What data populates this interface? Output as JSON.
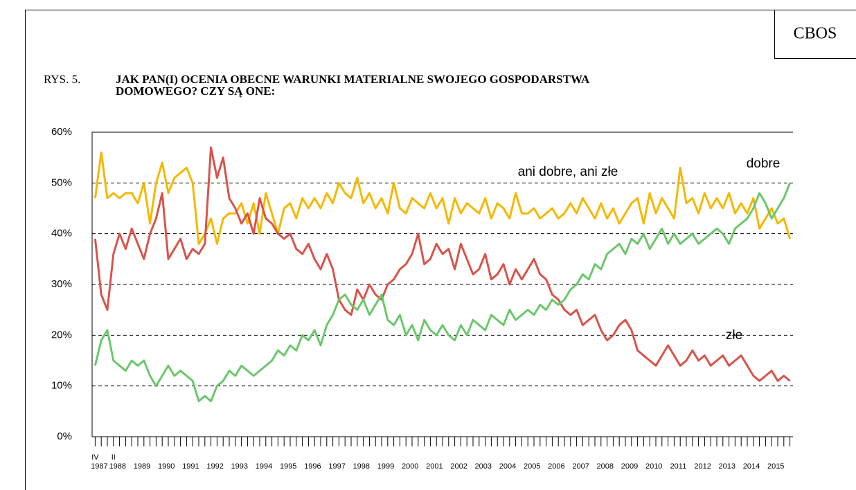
{
  "brand": "CBOS",
  "chart_data": {
    "type": "line",
    "figure_label": "RYS. 5.",
    "title_lines": [
      "JAK PAN(I) OCENIA OBECNE WARUNKI MATERIALNE SWOJEGO GOSPODARSTWA",
      "DOMOWEGO? CZY SĄ ONE:"
    ],
    "categories": [
      "1987",
      null,
      null,
      "1988",
      null,
      null,
      null,
      "1989",
      null,
      null,
      null,
      "1990",
      null,
      null,
      null,
      "1991",
      null,
      null,
      null,
      "1992",
      null,
      null,
      null,
      "1993",
      null,
      null,
      null,
      "1994",
      null,
      null,
      null,
      "1995",
      null,
      null,
      null,
      "1996",
      null,
      null,
      null,
      "1997",
      null,
      null,
      null,
      "1998",
      null,
      null,
      null,
      "1999",
      null,
      null,
      null,
      "2000",
      null,
      null,
      null,
      "2001",
      null,
      null,
      null,
      "2002",
      null,
      null,
      null,
      "2003",
      null,
      null,
      null,
      "2004",
      null,
      null,
      null,
      "2005",
      null,
      null,
      null,
      "2006",
      null,
      null,
      null,
      "2007",
      null,
      null,
      null,
      "2008",
      null,
      null,
      null,
      "2009",
      null,
      null,
      null,
      "2010",
      null,
      null,
      null,
      "2011",
      null,
      null,
      null,
      "2012",
      null,
      null,
      null,
      "2013",
      null,
      null,
      null,
      "2014",
      null,
      null,
      null,
      "2015",
      null,
      null,
      null
    ],
    "sublabels": [
      "IV",
      null,
      null,
      "II",
      null,
      null,
      null,
      null,
      null,
      null,
      null,
      null,
      null,
      null,
      null,
      null,
      null,
      null,
      null,
      null,
      null,
      null,
      null,
      null,
      null,
      null,
      null,
      null,
      null,
      null,
      null,
      null,
      null,
      null,
      null,
      null,
      null,
      null,
      null,
      null,
      null,
      null,
      null,
      null,
      null,
      null,
      null,
      null,
      null,
      null,
      null,
      null,
      null,
      null,
      null,
      null,
      null,
      null,
      null,
      null,
      null,
      null,
      null,
      null,
      null,
      null,
      null,
      null,
      null,
      null,
      null,
      null,
      null,
      null,
      null,
      null,
      null,
      null,
      null,
      null,
      null,
      null,
      null,
      null,
      null,
      null,
      null,
      null,
      null,
      null,
      null,
      null,
      null,
      null,
      null,
      null,
      null,
      null,
      null,
      null,
      null,
      null,
      null,
      null,
      null,
      null,
      null,
      null,
      null,
      null,
      null,
      null,
      null,
      null,
      null
    ],
    "ylim": [
      0,
      60
    ],
    "yticks": [
      {
        "value": 0,
        "label": "0%"
      },
      {
        "value": 10,
        "label": "10%"
      },
      {
        "value": 20,
        "label": "20%"
      },
      {
        "value": 30,
        "label": "30%"
      },
      {
        "value": 40,
        "label": "40%"
      },
      {
        "value": 50,
        "label": "50%"
      },
      {
        "value": 60,
        "label": "60%"
      }
    ],
    "grid": true,
    "series": [
      {
        "name": "ani dobre, ani złe",
        "color": "#f5b800",
        "values": [
          47,
          56,
          47,
          48,
          47,
          48,
          48,
          46,
          50,
          42,
          50,
          54,
          48,
          51,
          52,
          53,
          50,
          38,
          40,
          43,
          38,
          43,
          44,
          44,
          46,
          42,
          46,
          40,
          48,
          44,
          40,
          45,
          46,
          43,
          47,
          45,
          47,
          45,
          48,
          46,
          50,
          48,
          47,
          51,
          46,
          48,
          45,
          47,
          44,
          50,
          45,
          44,
          47,
          46,
          45,
          48,
          45,
          47,
          42,
          47,
          44,
          46,
          45,
          44,
          47,
          43,
          46,
          45,
          43,
          48,
          44,
          44,
          45,
          43,
          44,
          45,
          43,
          44,
          46,
          44,
          47,
          45,
          43,
          46,
          43,
          45,
          42,
          44,
          46,
          47,
          42,
          48,
          44,
          47,
          45,
          43,
          53,
          46,
          47,
          44,
          48,
          45,
          47,
          45,
          48,
          44,
          46,
          44,
          47,
          41,
          43,
          45,
          42,
          43,
          39
        ]
      },
      {
        "name": "złe",
        "color": "#d9534a",
        "values": [
          39,
          28,
          25,
          36,
          40,
          37,
          41,
          38,
          35,
          40,
          43,
          48,
          35,
          37,
          39,
          35,
          37,
          36,
          38,
          57,
          51,
          55,
          47,
          45,
          42,
          44,
          40,
          47,
          43,
          42,
          40,
          39,
          40,
          37,
          36,
          38,
          35,
          33,
          36,
          33,
          27,
          25,
          24,
          29,
          27,
          30,
          28,
          27,
          30,
          31,
          33,
          34,
          36,
          40,
          34,
          35,
          38,
          36,
          37,
          33,
          38,
          35,
          32,
          33,
          36,
          31,
          32,
          34,
          30,
          33,
          31,
          33,
          35,
          32,
          31,
          28,
          27,
          25,
          24,
          25,
          22,
          23,
          24,
          21,
          19,
          20,
          22,
          23,
          21,
          17,
          16,
          15,
          14,
          16,
          18,
          16,
          14,
          15,
          17,
          15,
          16,
          14,
          15,
          16,
          14,
          15,
          16,
          14,
          12,
          11,
          12,
          13,
          11,
          12,
          11
        ]
      },
      {
        "name": "dobre",
        "color": "#6cc66c",
        "values": [
          14,
          19,
          21,
          15,
          14,
          13,
          15,
          14,
          15,
          12,
          10,
          12,
          14,
          12,
          13,
          12,
          11,
          7,
          8,
          7,
          10,
          11,
          13,
          12,
          14,
          13,
          12,
          13,
          14,
          15,
          17,
          16,
          18,
          17,
          20,
          19,
          21,
          18,
          22,
          24,
          27,
          28,
          26,
          25,
          27,
          24,
          26,
          28,
          23,
          22,
          24,
          20,
          22,
          19,
          23,
          21,
          20,
          22,
          20,
          19,
          22,
          20,
          23,
          22,
          21,
          24,
          23,
          22,
          25,
          23,
          24,
          25,
          24,
          26,
          25,
          27,
          26,
          27,
          29,
          30,
          32,
          31,
          34,
          33,
          36,
          37,
          38,
          36,
          39,
          38,
          40,
          37,
          39,
          41,
          38,
          40,
          38,
          39,
          40,
          38,
          39,
          40,
          41,
          40,
          38,
          41,
          42,
          43,
          45,
          48,
          46,
          43,
          45,
          47,
          50
        ]
      }
    ]
  }
}
